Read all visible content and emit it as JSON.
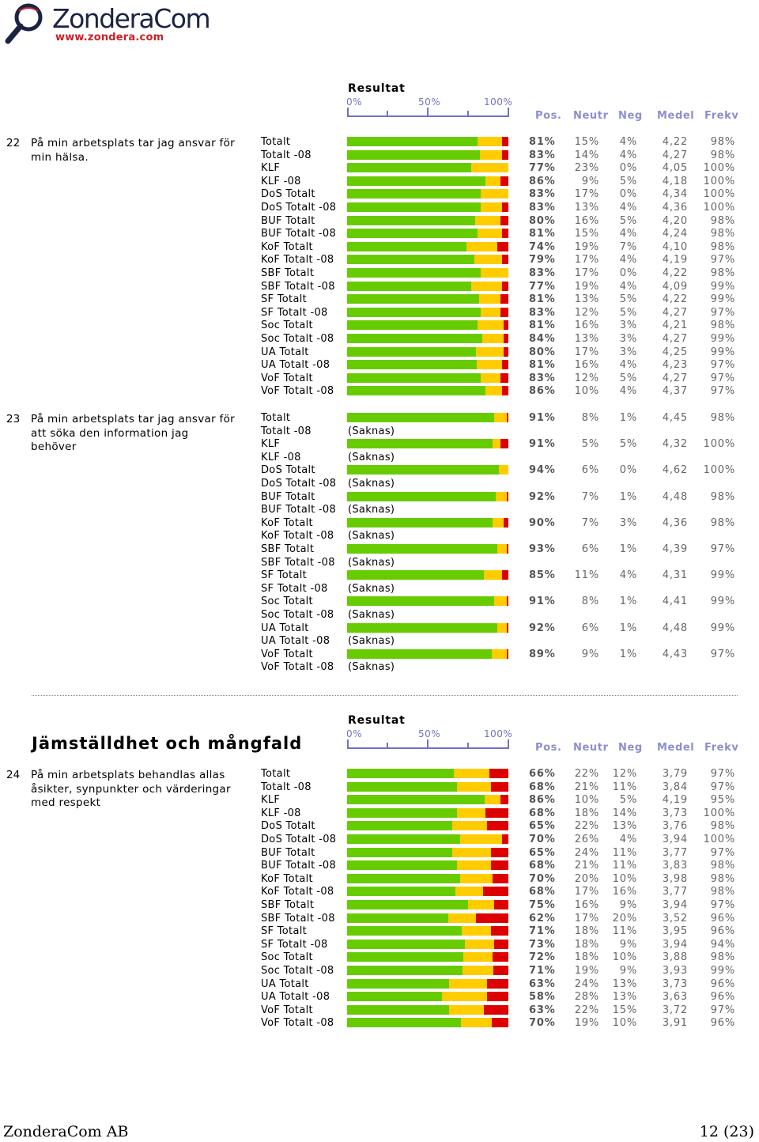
{
  "logo": {
    "name": "ZonderaCom",
    "url": "www.zondera.com"
  },
  "scale": {
    "title": "Resultat",
    "ticks": [
      "0%",
      "50%",
      "100%"
    ]
  },
  "columns": {
    "pos": "Pos.",
    "neutr": "Neutr",
    "neg": "Neg",
    "medel": "Medel",
    "frekv": "Frekv"
  },
  "colors": {
    "positive": "#66cc00",
    "neutral": "#ffcc00",
    "negative": "#dd0000",
    "scale_accent": "#6f74c6"
  },
  "questions": [
    {
      "number": "22",
      "text": "På min arbetsplats tar jag ansvar för min hälsa.",
      "rows": [
        {
          "label": "Totalt",
          "pos": "81%",
          "neutr": "15%",
          "neg": "4%",
          "medel": "4,22",
          "frekv": "98%"
        },
        {
          "label": "Totalt -08",
          "pos": "83%",
          "neutr": "14%",
          "neg": "4%",
          "medel": "4,27",
          "frekv": "98%"
        },
        {
          "label": "KLF",
          "pos": "77%",
          "neutr": "23%",
          "neg": "0%",
          "medel": "4,05",
          "frekv": "100%"
        },
        {
          "label": "KLF -08",
          "pos": "86%",
          "neutr": "9%",
          "neg": "5%",
          "medel": "4,18",
          "frekv": "100%"
        },
        {
          "label": "DoS Totalt",
          "pos": "83%",
          "neutr": "17%",
          "neg": "0%",
          "medel": "4,34",
          "frekv": "100%"
        },
        {
          "label": "DoS Totalt -08",
          "pos": "83%",
          "neutr": "13%",
          "neg": "4%",
          "medel": "4,36",
          "frekv": "100%"
        },
        {
          "label": "BUF Totalt",
          "pos": "80%",
          "neutr": "16%",
          "neg": "5%",
          "medel": "4,20",
          "frekv": "98%"
        },
        {
          "label": "BUF Totalt -08",
          "pos": "81%",
          "neutr": "15%",
          "neg": "4%",
          "medel": "4,24",
          "frekv": "98%"
        },
        {
          "label": "KoF Totalt",
          "pos": "74%",
          "neutr": "19%",
          "neg": "7%",
          "medel": "4,10",
          "frekv": "98%"
        },
        {
          "label": "KoF Totalt -08",
          "pos": "79%",
          "neutr": "17%",
          "neg": "4%",
          "medel": "4,19",
          "frekv": "97%"
        },
        {
          "label": "SBF Totalt",
          "pos": "83%",
          "neutr": "17%",
          "neg": "0%",
          "medel": "4,22",
          "frekv": "98%"
        },
        {
          "label": "SBF Totalt -08",
          "pos": "77%",
          "neutr": "19%",
          "neg": "4%",
          "medel": "4,09",
          "frekv": "99%"
        },
        {
          "label": "SF Totalt",
          "pos": "81%",
          "neutr": "13%",
          "neg": "5%",
          "medel": "4,22",
          "frekv": "99%"
        },
        {
          "label": "SF Totalt -08",
          "pos": "83%",
          "neutr": "12%",
          "neg": "5%",
          "medel": "4,27",
          "frekv": "97%"
        },
        {
          "label": "Soc Totalt",
          "pos": "81%",
          "neutr": "16%",
          "neg": "3%",
          "medel": "4,21",
          "frekv": "98%"
        },
        {
          "label": "Soc Totalt -08",
          "pos": "84%",
          "neutr": "13%",
          "neg": "3%",
          "medel": "4,27",
          "frekv": "99%"
        },
        {
          "label": "UA Totalt",
          "pos": "80%",
          "neutr": "17%",
          "neg": "3%",
          "medel": "4,25",
          "frekv": "99%"
        },
        {
          "label": "UA Totalt -08",
          "pos": "81%",
          "neutr": "16%",
          "neg": "4%",
          "medel": "4,23",
          "frekv": "97%"
        },
        {
          "label": "VoF Totalt",
          "pos": "83%",
          "neutr": "12%",
          "neg": "5%",
          "medel": "4,27",
          "frekv": "97%"
        },
        {
          "label": "VoF Totalt -08",
          "pos": "86%",
          "neutr": "10%",
          "neg": "4%",
          "medel": "4,37",
          "frekv": "97%"
        }
      ]
    },
    {
      "number": "23",
      "text": "På min arbetsplats tar jag ansvar för att söka den information jag behöver",
      "rows": [
        {
          "label": "Totalt",
          "pos": "91%",
          "neutr": "8%",
          "neg": "1%",
          "medel": "4,45",
          "frekv": "98%"
        },
        {
          "label": "Totalt -08",
          "saknas": "(Saknas)"
        },
        {
          "label": "KLF",
          "pos": "91%",
          "neutr": "5%",
          "neg": "5%",
          "medel": "4,32",
          "frekv": "100%"
        },
        {
          "label": "KLF -08",
          "saknas": "(Saknas)"
        },
        {
          "label": "DoS Totalt",
          "pos": "94%",
          "neutr": "6%",
          "neg": "0%",
          "medel": "4,62",
          "frekv": "100%"
        },
        {
          "label": "DoS Totalt -08",
          "saknas": "(Saknas)"
        },
        {
          "label": "BUF Totalt",
          "pos": "92%",
          "neutr": "7%",
          "neg": "1%",
          "medel": "4,48",
          "frekv": "98%"
        },
        {
          "label": "BUF Totalt -08",
          "saknas": "(Saknas)"
        },
        {
          "label": "KoF Totalt",
          "pos": "90%",
          "neutr": "7%",
          "neg": "3%",
          "medel": "4,36",
          "frekv": "98%"
        },
        {
          "label": "KoF Totalt -08",
          "saknas": "(Saknas)"
        },
        {
          "label": "SBF Totalt",
          "pos": "93%",
          "neutr": "6%",
          "neg": "1%",
          "medel": "4,39",
          "frekv": "97%"
        },
        {
          "label": "SBF Totalt -08",
          "saknas": "(Saknas)"
        },
        {
          "label": "SF Totalt",
          "pos": "85%",
          "neutr": "11%",
          "neg": "4%",
          "medel": "4,31",
          "frekv": "99%"
        },
        {
          "label": "SF Totalt -08",
          "saknas": "(Saknas)"
        },
        {
          "label": "Soc Totalt",
          "pos": "91%",
          "neutr": "8%",
          "neg": "1%",
          "medel": "4,41",
          "frekv": "99%"
        },
        {
          "label": "Soc Totalt -08",
          "saknas": "(Saknas)"
        },
        {
          "label": "UA Totalt",
          "pos": "92%",
          "neutr": "6%",
          "neg": "1%",
          "medel": "4,48",
          "frekv": "99%"
        },
        {
          "label": "UA Totalt -08",
          "saknas": "(Saknas)"
        },
        {
          "label": "VoF Totalt",
          "pos": "89%",
          "neutr": "9%",
          "neg": "1%",
          "medel": "4,43",
          "frekv": "97%"
        },
        {
          "label": "VoF Totalt -08",
          "saknas": "(Saknas)"
        }
      ]
    },
    {
      "number": "24",
      "text": "På min arbetsplats behandlas allas åsikter, synpunkter och värderingar med respekt",
      "rows": [
        {
          "label": "Totalt",
          "pos": "66%",
          "neutr": "22%",
          "neg": "12%",
          "medel": "3,79",
          "frekv": "97%"
        },
        {
          "label": "Totalt -08",
          "pos": "68%",
          "neutr": "21%",
          "neg": "11%",
          "medel": "3,84",
          "frekv": "97%"
        },
        {
          "label": "KLF",
          "pos": "86%",
          "neutr": "10%",
          "neg": "5%",
          "medel": "4,19",
          "frekv": "95%"
        },
        {
          "label": "KLF -08",
          "pos": "68%",
          "neutr": "18%",
          "neg": "14%",
          "medel": "3,73",
          "frekv": "100%"
        },
        {
          "label": "DoS Totalt",
          "pos": "65%",
          "neutr": "22%",
          "neg": "13%",
          "medel": "3,76",
          "frekv": "98%"
        },
        {
          "label": "DoS Totalt -08",
          "pos": "70%",
          "neutr": "26%",
          "neg": "4%",
          "medel": "3,94",
          "frekv": "100%"
        },
        {
          "label": "BUF Totalt",
          "pos": "65%",
          "neutr": "24%",
          "neg": "11%",
          "medel": "3,77",
          "frekv": "97%"
        },
        {
          "label": "BUF Totalt -08",
          "pos": "68%",
          "neutr": "21%",
          "neg": "11%",
          "medel": "3,83",
          "frekv": "98%"
        },
        {
          "label": "KoF Totalt",
          "pos": "70%",
          "neutr": "20%",
          "neg": "10%",
          "medel": "3,98",
          "frekv": "98%"
        },
        {
          "label": "KoF Totalt -08",
          "pos": "68%",
          "neutr": "17%",
          "neg": "16%",
          "medel": "3,77",
          "frekv": "98%"
        },
        {
          "label": "SBF Totalt",
          "pos": "75%",
          "neutr": "16%",
          "neg": "9%",
          "medel": "3,94",
          "frekv": "97%"
        },
        {
          "label": "SBF Totalt -08",
          "pos": "62%",
          "neutr": "17%",
          "neg": "20%",
          "medel": "3,52",
          "frekv": "96%"
        },
        {
          "label": "SF Totalt",
          "pos": "71%",
          "neutr": "18%",
          "neg": "11%",
          "medel": "3,95",
          "frekv": "96%"
        },
        {
          "label": "SF Totalt -08",
          "pos": "73%",
          "neutr": "18%",
          "neg": "9%",
          "medel": "3,94",
          "frekv": "94%"
        },
        {
          "label": "Soc Totalt",
          "pos": "72%",
          "neutr": "18%",
          "neg": "10%",
          "medel": "3,88",
          "frekv": "98%"
        },
        {
          "label": "Soc Totalt -08",
          "pos": "71%",
          "neutr": "19%",
          "neg": "9%",
          "medel": "3,93",
          "frekv": "99%"
        },
        {
          "label": "UA Totalt",
          "pos": "63%",
          "neutr": "24%",
          "neg": "13%",
          "medel": "3,73",
          "frekv": "96%"
        },
        {
          "label": "UA Totalt -08",
          "pos": "58%",
          "neutr": "28%",
          "neg": "13%",
          "medel": "3,63",
          "frekv": "96%"
        },
        {
          "label": "VoF Totalt",
          "pos": "63%",
          "neutr": "22%",
          "neg": "15%",
          "medel": "3,72",
          "frekv": "97%"
        },
        {
          "label": "VoF Totalt -08",
          "pos": "70%",
          "neutr": "19%",
          "neg": "10%",
          "medel": "3,91",
          "frekv": "96%"
        }
      ]
    }
  ],
  "section": {
    "title": "Jämställdhet och mångfald"
  },
  "footer": {
    "company": "ZonderaCom AB",
    "page": "12 (23)"
  }
}
